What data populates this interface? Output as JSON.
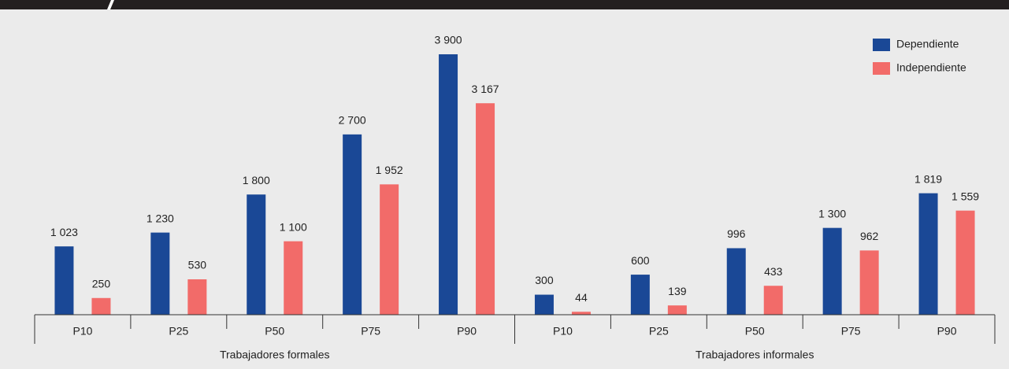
{
  "chart_data": {
    "type": "bar",
    "categories": [
      "P10",
      "P25",
      "P50",
      "P75",
      "P90",
      "P10",
      "P25",
      "P50",
      "P75",
      "P90"
    ],
    "groups": [
      "Trabajadores formales",
      "Trabajadores informales"
    ],
    "series": [
      {
        "name": "Dependiente",
        "color": "#1a4896",
        "values": [
          1023,
          1230,
          1800,
          2700,
          3900,
          300,
          600,
          996,
          1300,
          1819
        ],
        "value_labels": [
          "1 023",
          "1 230",
          "1 800",
          "2 700",
          "3 900",
          "300",
          "600",
          "996",
          "1 300",
          "1 819"
        ]
      },
      {
        "name": "Independiente",
        "color": "#f26b69",
        "values": [
          250,
          530,
          1100,
          1952,
          3167,
          44,
          139,
          433,
          962,
          1559
        ],
        "value_labels": [
          "250",
          "530",
          "1 100",
          "1 952",
          "3 167",
          "44",
          "139",
          "433",
          "962",
          "1 559"
        ]
      }
    ],
    "legend": "top-right"
  }
}
